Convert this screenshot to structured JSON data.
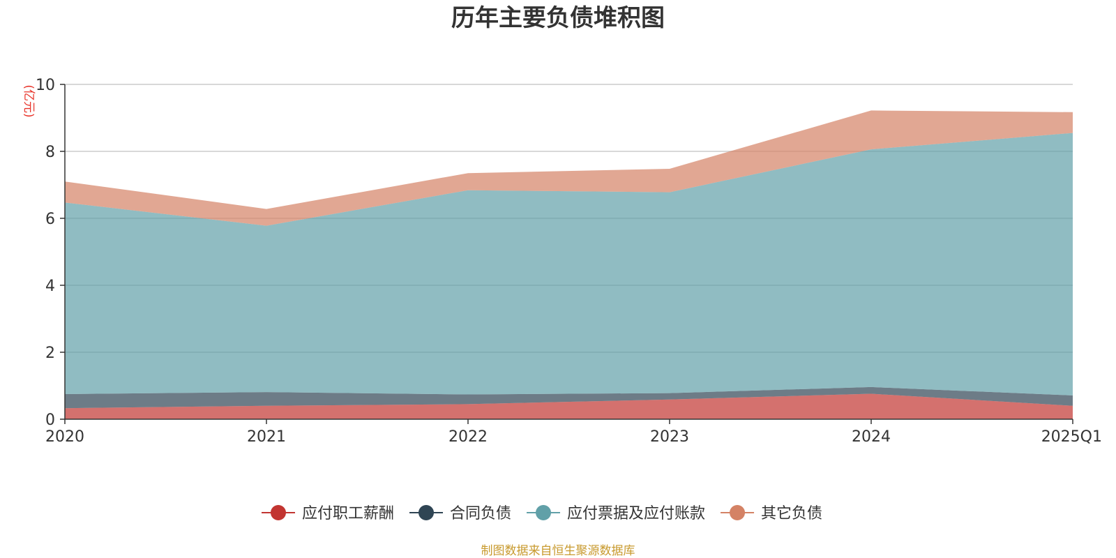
{
  "chart_data": {
    "type": "area",
    "stacked": true,
    "title": "历年主要负债堆积图",
    "y_unit": "(亿元)",
    "categories": [
      "2020",
      "2021",
      "2022",
      "2023",
      "2024",
      "2025Q1"
    ],
    "ylim": [
      0,
      10
    ],
    "yticks": [
      0,
      2,
      4,
      6,
      8,
      10
    ],
    "grid": true,
    "legend_position": "bottom",
    "series": [
      {
        "name": "应付职工薪酬",
        "color": "#c23531",
        "values": [
          0.33,
          0.4,
          0.45,
          0.59,
          0.76,
          0.4
        ]
      },
      {
        "name": "合同负债",
        "color": "#2f4554",
        "values": [
          0.42,
          0.41,
          0.29,
          0.19,
          0.2,
          0.31
        ]
      },
      {
        "name": "应付票据及应付账款",
        "color": "#61a0a8",
        "values": [
          5.72,
          4.97,
          6.1,
          6.0,
          7.1,
          7.84
        ]
      },
      {
        "name": "其它负债",
        "color": "#d48265",
        "values": [
          0.63,
          0.5,
          0.51,
          0.7,
          1.16,
          0.62
        ]
      }
    ]
  },
  "footer": {
    "source": "制图数据来自恒生聚源数据库"
  }
}
